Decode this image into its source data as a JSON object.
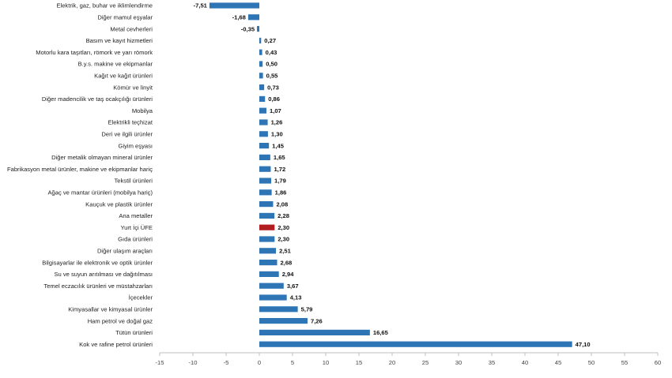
{
  "chart_data": {
    "type": "bar",
    "orientation": "horizontal",
    "title": "",
    "xlabel": "",
    "ylabel": "",
    "xlim": [
      -15,
      60
    ],
    "xticks": [
      -15,
      -10,
      -5,
      0,
      5,
      10,
      15,
      20,
      25,
      30,
      35,
      40,
      45,
      50,
      55,
      60
    ],
    "grid": false,
    "legend": "none",
    "colors": {
      "default": "#2e75b6",
      "highlight": "#b01e22"
    },
    "categories": [
      "Elektrik, gaz, buhar ve iklimlendirme",
      "Diğer mamul eşyalar",
      "Metal cevherleri",
      "Basım ve kayıt hizmetleri",
      "Motorlu kara taşıtları, römork ve yarı römork",
      "B.y.s. makine ve ekipmanlar",
      "Kağıt ve kağıt ürünleri",
      "Kömür ve linyit",
      "Diğer madencilik ve taş ocakçılığı ürünleri",
      "Mobilya",
      "Elektrikli teçhizat",
      "Deri ve ilgili ürünler",
      "Giyim eşyası",
      "Diğer metalik olmayan mineral ürünler",
      "Fabrikasyon metal ürünler, makine ve ekipmanlar hariç",
      "Tekstil ürünleri",
      "Ağaç ve mantar ürünleri (mobilya hariç)",
      "Kauçuk ve plastik ürünler",
      "Ana metaller",
      "Yurt İçi ÜFE",
      "Gıda ürünleri",
      "Diğer ulaşım araçları",
      "Bilgisayarlar ile elektronik ve optik ürünler",
      "Su ve suyun arıtılması ve dağıtılması",
      "Temel eczacılık ürünleri ve müstahzarları",
      "İçecekler",
      "Kimyasallar ve kimyasal ürünler",
      "Ham petrol ve doğal gaz",
      "Tütün ürünleri",
      "Kok ve rafine petrol ürünleri"
    ],
    "values": [
      -7.51,
      -1.68,
      -0.35,
      0.27,
      0.43,
      0.5,
      0.55,
      0.73,
      0.86,
      1.07,
      1.26,
      1.3,
      1.45,
      1.65,
      1.72,
      1.79,
      1.86,
      2.08,
      2.28,
      2.3,
      2.3,
      2.51,
      2.68,
      2.94,
      3.67,
      4.13,
      5.79,
      7.26,
      16.65,
      47.1
    ],
    "value_labels": [
      "-7,51",
      "-1,68",
      "-0,35",
      "0,27",
      "0,43",
      "0,50",
      "0,55",
      "0,73",
      "0,86",
      "1,07",
      "1,26",
      "1,30",
      "1,45",
      "1,65",
      "1,72",
      "1,79",
      "1,86",
      "2,08",
      "2,28",
      "2,30",
      "2,30",
      "2,51",
      "2,68",
      "2,94",
      "3,67",
      "4,13",
      "5,79",
      "7,26",
      "16,65",
      "47,10"
    ],
    "highlight_category": "Yurt İçi ÜFE"
  }
}
